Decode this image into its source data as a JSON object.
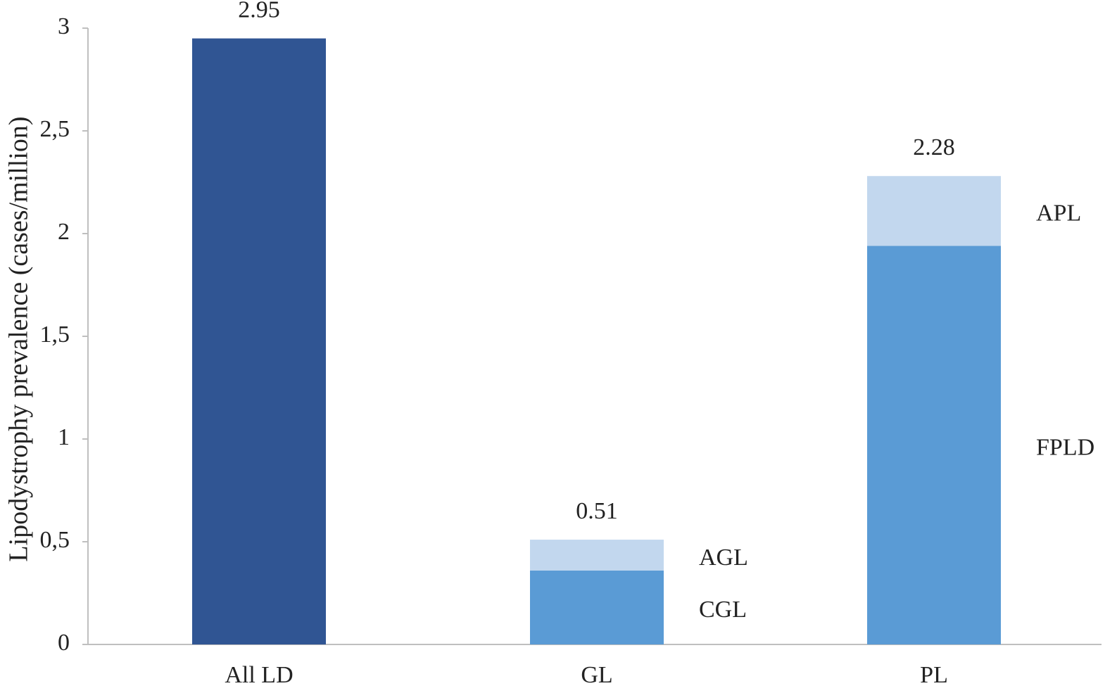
{
  "chart_data": {
    "type": "bar",
    "stacked": true,
    "title": "",
    "xlabel": "",
    "ylabel": "Lipodystrophy prevalence  (cases/million)",
    "ylim": [
      0,
      3
    ],
    "yticks": [
      0,
      0.5,
      1,
      1.5,
      2,
      2.5,
      3
    ],
    "ytick_labels": [
      "0",
      "0,5",
      "1",
      "1,5",
      "2",
      "2,5",
      "3"
    ],
    "categories": [
      "All LD",
      "GL",
      "PL"
    ],
    "grid": false,
    "legend": "none",
    "bars": [
      {
        "category": "All LD",
        "total_label": "2.95",
        "segments": [
          {
            "name": "",
            "value": 2.95,
            "color": "#305593"
          }
        ]
      },
      {
        "category": "GL",
        "total_label": "0.51",
        "segments": [
          {
            "name": "CGL",
            "value": 0.36,
            "color": "#5a9bd5"
          },
          {
            "name": "AGL",
            "value": 0.15,
            "color": "#c2d7ee"
          }
        ]
      },
      {
        "category": "PL",
        "total_label": "2.28",
        "segments": [
          {
            "name": "FPLD",
            "value": 1.94,
            "color": "#5a9bd5"
          },
          {
            "name": "APL",
            "value": 0.34,
            "color": "#c2d7ee"
          }
        ]
      }
    ],
    "axis_color": "#bfbfbf"
  }
}
